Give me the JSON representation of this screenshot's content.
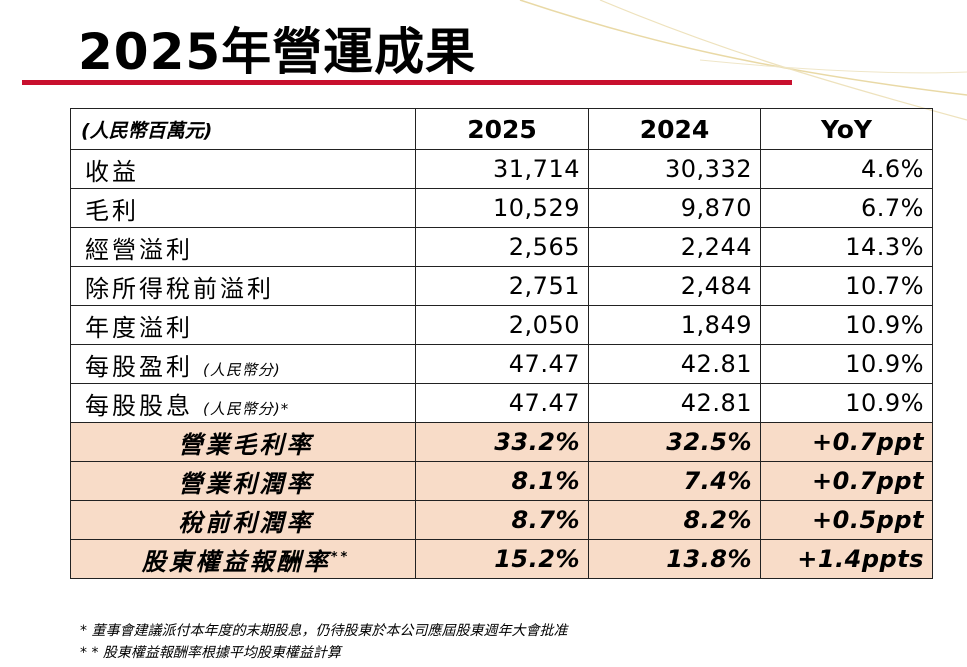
{
  "title": "2025年營運成果",
  "table": {
    "unit_label": "(人民幣百萬元)",
    "col_2025": "2025",
    "col_2024": "2024",
    "col_yoy": "YoY",
    "rows": [
      {
        "label": "收益",
        "sub": "",
        "v2025": "31,714",
        "v2024": "30,332",
        "yoy": "4.6%"
      },
      {
        "label": "毛利",
        "sub": "",
        "v2025": "10,529",
        "v2024": "9,870",
        "yoy": "6.7%"
      },
      {
        "label": "經營溢利",
        "sub": "",
        "v2025": "2,565",
        "v2024": "2,244",
        "yoy": "14.3%"
      },
      {
        "label": "除所得稅前溢利",
        "sub": "",
        "v2025": "2,751",
        "v2024": "2,484",
        "yoy": "10.7%"
      },
      {
        "label": "年度溢利",
        "sub": "",
        "v2025": "2,050",
        "v2024": "1,849",
        "yoy": "10.9%"
      },
      {
        "label": "每股盈利",
        "sub": "(人民幣分)",
        "v2025": "47.47",
        "v2024": "42.81",
        "yoy": "10.9%"
      },
      {
        "label": "每股股息",
        "sub": "(人民幣分)*",
        "v2025": "47.47",
        "v2024": "42.81",
        "yoy": "10.9%"
      }
    ],
    "ratios": [
      {
        "label": "營業毛利率",
        "mark": "",
        "v2025": "33.2%",
        "v2024": "32.5%",
        "yoy": "+0.7ppt"
      },
      {
        "label": "營業利潤率",
        "mark": "",
        "v2025": "8.1%",
        "v2024": "7.4%",
        "yoy": "+0.7ppt"
      },
      {
        "label": "稅前利潤率",
        "mark": "",
        "v2025": "8.7%",
        "v2024": "8.2%",
        "yoy": "+0.5ppt"
      },
      {
        "label": "股東權益報酬率",
        "mark": "**",
        "v2025": "15.2%",
        "v2024": "13.8%",
        "yoy": "+1.4ppts"
      }
    ]
  },
  "footnotes": [
    "* 董事會建議派付本年度的末期股息，仍待股東於本公司應屆股東週年大會批准",
    "* * 股東權益報酬率根據平均股東權益計算"
  ],
  "colors": {
    "accent_red": "#c8102e",
    "ratio_fill": "#f8dcc8",
    "deco_gold": "#e9d9a6"
  }
}
